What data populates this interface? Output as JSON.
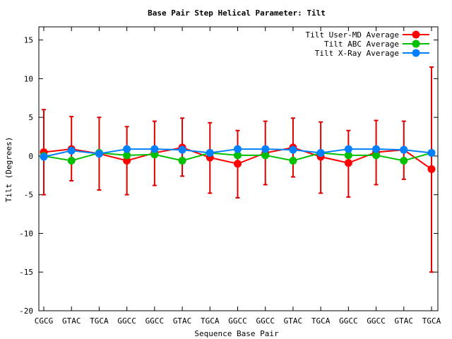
{
  "chart_data": {
    "type": "line",
    "title": "Base Pair Step Helical Parameter: Tilt",
    "xlabel": "Sequence Base Pair",
    "ylabel": "Tilt (Degrees)",
    "ylim": [
      -20,
      16.7
    ],
    "yticks": [
      -20,
      -15,
      -10,
      -5,
      0,
      5,
      10,
      15
    ],
    "categories": [
      "CGCG",
      "GTAC",
      "TGCA",
      "GGCC",
      "GGCC",
      "GTAC",
      "TGCA",
      "GGCC",
      "GGCC",
      "GTAC",
      "TGCA",
      "GGCC",
      "GGCC",
      "GTAC",
      "TGCA"
    ],
    "legend_position": "top-right",
    "grid": false,
    "series": [
      {
        "name": "Tilt User-MD Average",
        "color": "#ff0000",
        "errcolor": "#dd0000",
        "values": [
          0.5,
          0.9,
          0.3,
          -0.6,
          0.4,
          1.1,
          -0.2,
          -1.0,
          0.4,
          1.1,
          -0.1,
          -0.9,
          0.5,
          0.8,
          -1.7
        ],
        "err_low": [
          -5.0,
          -3.2,
          -4.4,
          -5.0,
          -3.8,
          -2.6,
          -4.8,
          -5.4,
          -3.7,
          -2.7,
          -4.8,
          -5.3,
          -3.7,
          -3.0,
          -15.0
        ],
        "err_high": [
          6.0,
          5.1,
          5.0,
          3.8,
          4.5,
          4.9,
          4.3,
          3.3,
          4.5,
          4.9,
          4.4,
          3.3,
          4.6,
          4.5,
          11.5
        ]
      },
      {
        "name": "Tilt ABC Average",
        "color": "#00c000",
        "values": [
          0.0,
          -0.6,
          0.4,
          0.1,
          0.2,
          -0.6,
          0.4,
          0.1,
          0.1,
          -0.6,
          0.4,
          0.1,
          0.1,
          -0.6,
          0.4
        ]
      },
      {
        "name": "Tilt X-Ray Average",
        "color": "#0080ff",
        "values": [
          -0.1,
          0.7,
          0.3,
          0.9,
          0.9,
          0.8,
          0.4,
          0.9,
          0.9,
          0.8,
          0.4,
          0.9,
          0.9,
          0.8,
          0.4
        ]
      }
    ]
  }
}
